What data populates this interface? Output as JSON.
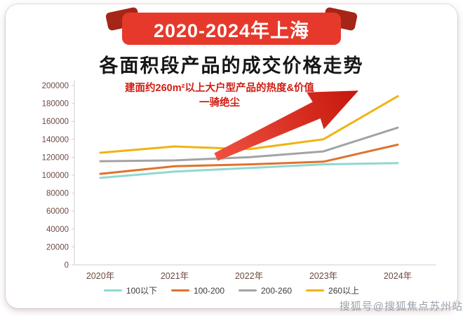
{
  "banner": {
    "title": "2020-2024年上海"
  },
  "subtitle": "各面积段产品的成交价格走势",
  "annotation": {
    "line1": "建面约260m²以上大户型产品的热度&价值",
    "line2": "一骑绝尘"
  },
  "watermark": "搜狐号@搜狐焦点苏州站",
  "colors": {
    "ribbon_red": "#e6392b",
    "ribbon_tail_red": "#a52517",
    "annotation_red": "#cf1d12",
    "arrow_red_start": "#ef5040",
    "arrow_red_end": "#c6170c",
    "axis_label": "#6e4a3f"
  },
  "chart_data": {
    "type": "line",
    "title": "各面积段产品的成交价格走势",
    "categories": [
      "2020年",
      "2021年",
      "2022年",
      "2023年",
      "2024年"
    ],
    "series": [
      {
        "name": "100以下",
        "color": "#8fd8d2",
        "values": [
          97000,
          104000,
          108000,
          112000,
          113500
        ]
      },
      {
        "name": "100-200",
        "color": "#e0722b",
        "values": [
          101500,
          110000,
          112000,
          115000,
          134000
        ]
      },
      {
        "name": "200-260",
        "color": "#a3a3a3",
        "values": [
          115500,
          116500,
          120000,
          126500,
          153000
        ]
      },
      {
        "name": "260以上",
        "color": "#f0b310",
        "values": [
          125000,
          132000,
          129000,
          140000,
          188000
        ]
      }
    ],
    "ylim": [
      0,
      200000
    ],
    "ytick_step": 20000,
    "xlabel": "",
    "ylabel": "",
    "grid": false,
    "legend_position": "bottom"
  }
}
